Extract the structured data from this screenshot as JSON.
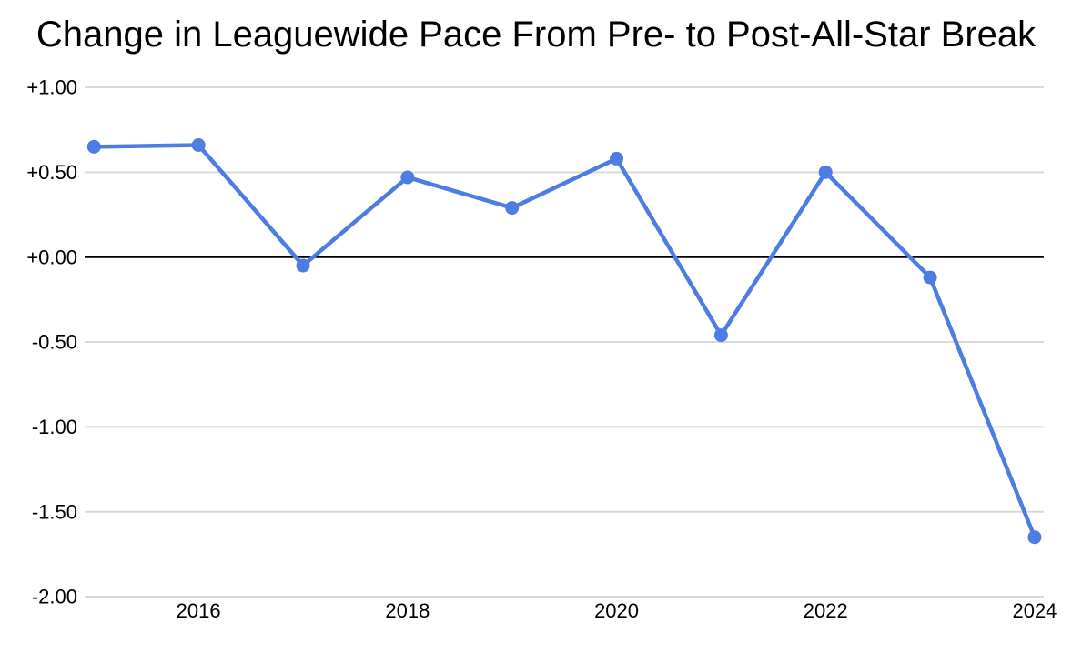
{
  "chart_data": {
    "type": "line",
    "title": "Change in Leaguewide Pace From Pre- to Post-All-Star Break",
    "x": [
      2015,
      2016,
      2017,
      2018,
      2019,
      2020,
      2021,
      2022,
      2023,
      2024
    ],
    "values": [
      0.65,
      0.66,
      -0.05,
      0.47,
      0.29,
      0.58,
      -0.46,
      0.5,
      -0.12,
      -1.65
    ],
    "xlabel": "",
    "ylabel": "",
    "ylim": [
      -2.0,
      1.0
    ],
    "y_ticks": [
      {
        "value": 1.0,
        "label": "+1.00"
      },
      {
        "value": 0.5,
        "label": "+0.50"
      },
      {
        "value": 0.0,
        "label": "+0.00"
      },
      {
        "value": -0.5,
        "label": "-0.50"
      },
      {
        "value": -1.0,
        "label": "-1.00"
      },
      {
        "value": -1.5,
        "label": "-1.50"
      },
      {
        "value": -2.0,
        "label": "-2.00"
      }
    ],
    "x_ticks": [
      {
        "x": 2016,
        "label": "2016"
      },
      {
        "x": 2018,
        "label": "2018"
      },
      {
        "x": 2020,
        "label": "2020"
      },
      {
        "x": 2022,
        "label": "2022"
      },
      {
        "x": 2024,
        "label": "2024"
      }
    ],
    "legend": "none",
    "grid": "horizontal",
    "zero_line_emphasized": true,
    "colors": {
      "series": "#4d7ce2",
      "grid": "#d9d9d9",
      "zero_line": "#000000",
      "text": "#000000",
      "background": "#ffffff"
    }
  }
}
